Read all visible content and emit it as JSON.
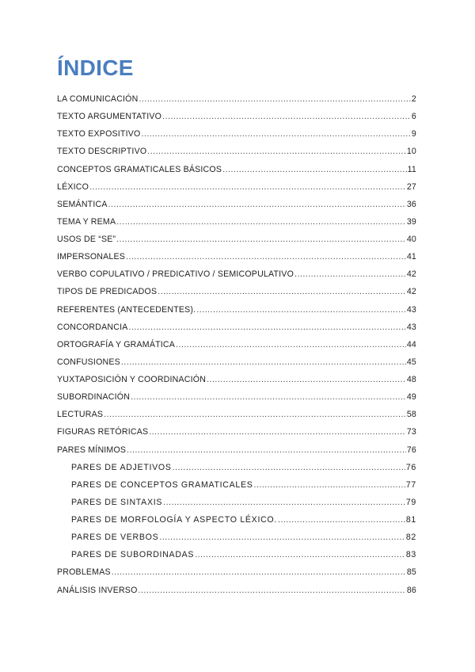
{
  "title": "ÍNDICE",
  "title_color": "#4a7ebf",
  "entries": [
    {
      "label": "LA COMUNICACIÓN",
      "page": "2",
      "level": 1
    },
    {
      "label": "TEXTO ARGUMENTATIVO",
      "page": "6",
      "level": 1
    },
    {
      "label": "TEXTO EXPOSITIVO",
      "page": "9",
      "level": 1
    },
    {
      "label": "TEXTO DESCRIPTIVO",
      "page": "10",
      "level": 1
    },
    {
      "label": "CONCEPTOS GRAMATICALES BÁSICOS",
      "page": "11",
      "level": 1
    },
    {
      "label": "LÉXICO",
      "page": "27",
      "level": 1
    },
    {
      "label": "SEMÁNTICA",
      "page": "36",
      "level": 1
    },
    {
      "label": "TEMA Y REMA",
      "page": "39",
      "level": 1
    },
    {
      "label": "USOS DE “SE”",
      "page": "40",
      "level": 1
    },
    {
      "label": "IMPERSONALES",
      "page": "41",
      "level": 1
    },
    {
      "label": "VERBO COPULATIVO / PREDICATIVO / SEMICOPULATIVO",
      "page": "42",
      "level": 1
    },
    {
      "label": "TIPOS DE PREDICADOS",
      "page": "42",
      "level": 1
    },
    {
      "label": "REFERENTES (ANTECEDENTES).",
      "page": "43",
      "level": 1
    },
    {
      "label": "CONCORDANCIA",
      "page": "43",
      "level": 1
    },
    {
      "label": "ORTOGRAFÍA Y GRAMÁTICA",
      "page": "44",
      "level": 1
    },
    {
      "label": "CONFUSIONES",
      "page": "45",
      "level": 1
    },
    {
      "label": "YUXTAPOSICIÓN Y COORDINACIÓN",
      "page": "48",
      "level": 1
    },
    {
      "label": "SUBORDINACIÓN",
      "page": "49",
      "level": 1
    },
    {
      "label": "LECTURAS",
      "page": "58",
      "level": 1
    },
    {
      "label": "FIGURAS RETÓRICAS",
      "page": "73",
      "level": 1
    },
    {
      "label": "PARES MÍNIMOS",
      "page": "76",
      "level": 1
    },
    {
      "label": "PARES DE ADJETIVOS",
      "page": "76",
      "level": 2
    },
    {
      "label": "PARES DE CONCEPTOS GRAMATICALES",
      "page": "77",
      "level": 2
    },
    {
      "label": "PARES DE SINTAXIS",
      "page": "79",
      "level": 2
    },
    {
      "label": "PARES DE MORFOLOGÍA Y ASPECTO LÉXICO.",
      "page": "81",
      "level": 2
    },
    {
      "label": "PARES DE VERBOS",
      "page": "82",
      "level": 2
    },
    {
      "label": "PARES DE SUBORDINADAS",
      "page": "83",
      "level": 2
    },
    {
      "label": "PROBLEMAS",
      "page": "85",
      "level": 1
    },
    {
      "label": "ANÁLISIS INVERSO",
      "page": "86",
      "level": 1
    }
  ]
}
